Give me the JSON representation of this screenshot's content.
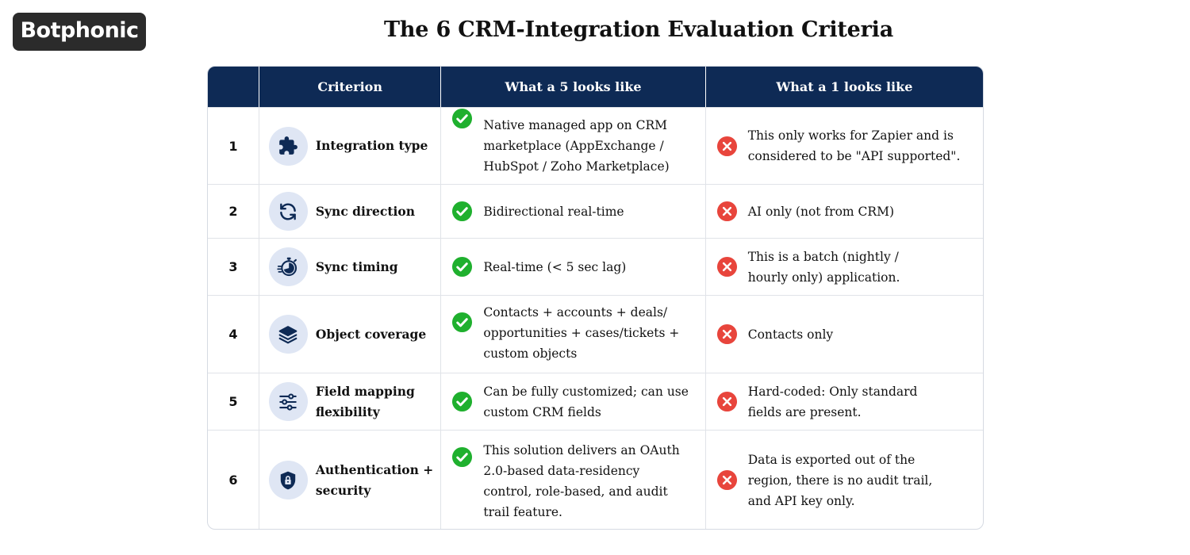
{
  "logo": {
    "text": "Botphonic"
  },
  "title": "The 6 CRM-Integration Evaluation Criteria",
  "table": {
    "headers": [
      "",
      "Criterion",
      "What a 5 looks like",
      "What a 1 looks like"
    ],
    "rows": [
      {
        "num": "1",
        "icon": "puzzle-icon",
        "criterion": "Integration type",
        "five": "Native managed app on CRM marketplace (AppExchange / HubSpot / Zoho Marketplace)",
        "one": "This only works for Zapier and is considered to be \"API supported\"."
      },
      {
        "num": "2",
        "icon": "sync-icon",
        "criterion": "Sync direction",
        "five": "Bidirectional real-time",
        "one": "AI only (not from CRM)"
      },
      {
        "num": "3",
        "icon": "stopwatch-icon",
        "criterion": "Sync timing",
        "five": "Real-time (< 5 sec lag)",
        "one": "This is a batch (nightly / hourly only) application."
      },
      {
        "num": "4",
        "icon": "layers-icon",
        "criterion": "Object coverage",
        "five": "Contacts + accounts + deals/ opportunities + cases/tickets + custom objects",
        "one": "Contacts only"
      },
      {
        "num": "5",
        "icon": "sliders-icon",
        "criterion": "Field mapping flexibility",
        "five": "Can be fully customized; can use custom CRM fields",
        "one": "Hard-coded: Only standard fields are present."
      },
      {
        "num": "6",
        "icon": "shield-lock-icon",
        "criterion": "Authentication + security",
        "five": "This solution delivers an OAuth 2.0-based data-residency control, role-based, and audit trail feature.",
        "one": "Data is exported out of the region, there is no audit trail, and API key only."
      }
    ]
  },
  "colors": {
    "header": "#0e2a55",
    "check": "#1fb02e",
    "cross": "#e8453c",
    "icon_bg": "#dfe6f4",
    "icon": "#0e2a55"
  }
}
